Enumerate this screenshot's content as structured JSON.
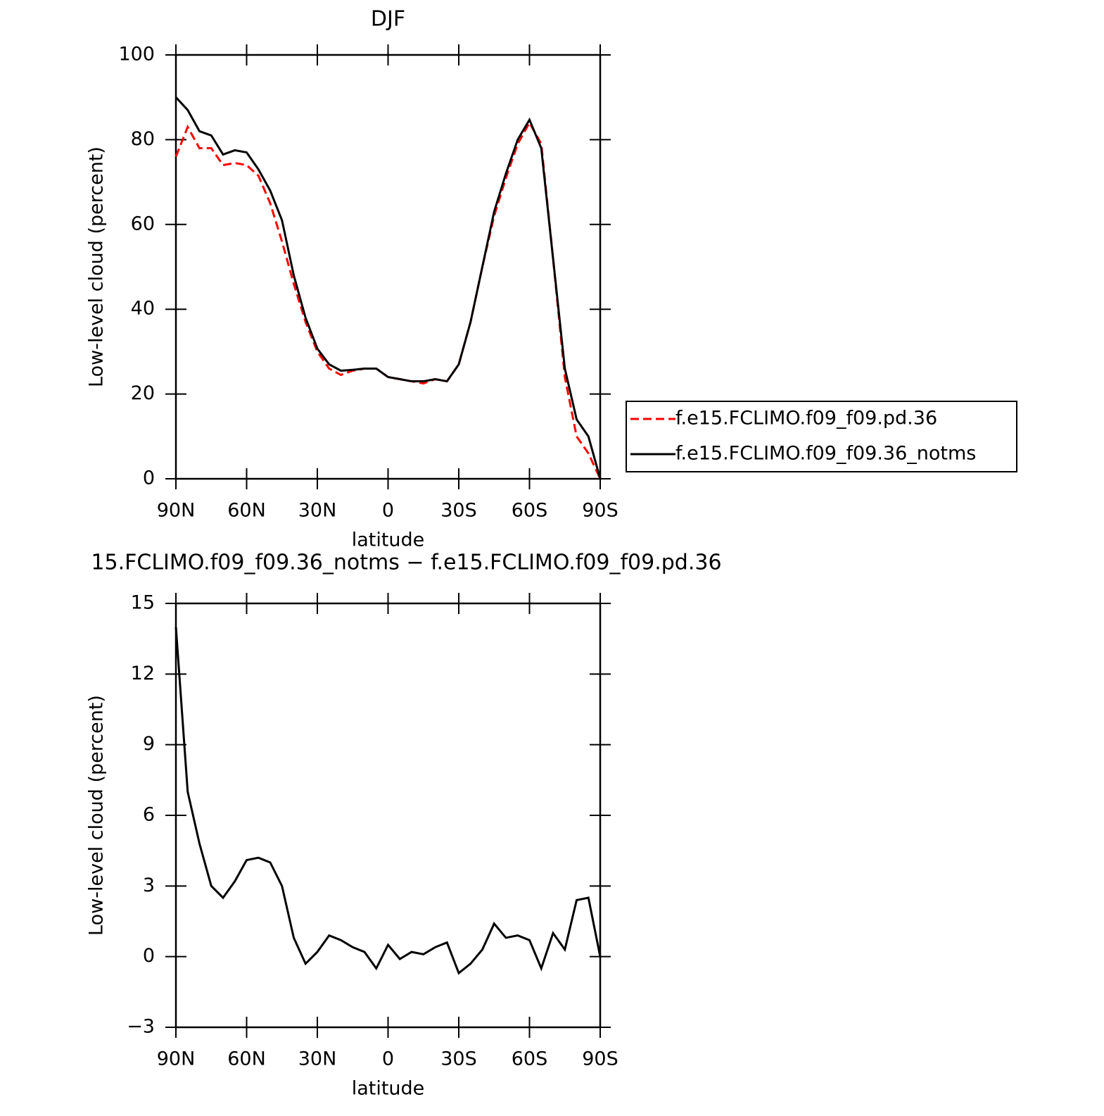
{
  "chart_data": [
    {
      "type": "line",
      "title": "DJF",
      "xlabel": "latitude",
      "ylabel": "Low-level cloud (percent)",
      "x": [
        90,
        85,
        80,
        75,
        70,
        65,
        60,
        55,
        50,
        45,
        40,
        35,
        30,
        25,
        20,
        15,
        10,
        5,
        0,
        -5,
        -10,
        -15,
        -20,
        -25,
        -30,
        -35,
        -40,
        -45,
        -50,
        -55,
        -60,
        -65,
        -70,
        -75,
        -80,
        -85,
        -90
      ],
      "xlim": [
        90,
        -90
      ],
      "xticks": [
        {
          "value": 90,
          "label": "90N"
        },
        {
          "value": 60,
          "label": "60N"
        },
        {
          "value": 30,
          "label": "30N"
        },
        0,
        {
          "value": -30,
          "label": "30S"
        },
        {
          "value": -60,
          "label": "60S"
        },
        {
          "value": -90,
          "label": "90S"
        }
      ],
      "ylim": [
        0,
        100
      ],
      "yticks": [
        0,
        20,
        40,
        60,
        80,
        100
      ],
      "legend": "right",
      "series": [
        {
          "name": "f.e15.FCLIMO.f09_f09.pd.36",
          "color": "#ff0000",
          "dash": true,
          "values": [
            76,
            83,
            78,
            78,
            74,
            74.5,
            74,
            71.5,
            65,
            56,
            46,
            37,
            30,
            26,
            24.5,
            25.5,
            26,
            26,
            24,
            23.5,
            23,
            22.5,
            23.5,
            23,
            27,
            37,
            50,
            62,
            71,
            79,
            84,
            79,
            52,
            24,
            10,
            6,
            0
          ]
        },
        {
          "name": "f.e15.FCLIMO.f09_f09.36_notms",
          "color": "#000000",
          "dash": false,
          "values": [
            90,
            87,
            82,
            81,
            76.5,
            77.5,
            77,
            73,
            68,
            61,
            48,
            38,
            30.7,
            27,
            25.5,
            25.7,
            26,
            26,
            24,
            23.5,
            23,
            23,
            23.5,
            23,
            27,
            37,
            50,
            63,
            72,
            80,
            84.7,
            78,
            52,
            26,
            14,
            10,
            0
          ]
        }
      ]
    },
    {
      "type": "line",
      "title": "15.FCLIMO.f09_f09.36_notms − f.e15.FCLIMO.f09_f09.pd.36",
      "xlabel": "latitude",
      "ylabel": "Low-level cloud (percent)",
      "x": [
        90,
        85,
        80,
        75,
        70,
        65,
        60,
        55,
        50,
        45,
        40,
        35,
        30,
        25,
        20,
        15,
        10,
        5,
        0,
        -5,
        -10,
        -15,
        -20,
        -25,
        -30,
        -35,
        -40,
        -45,
        -50,
        -55,
        -60,
        -65,
        -70,
        -75,
        -80,
        -85,
        -90
      ],
      "xlim": [
        90,
        -90
      ],
      "xticks": [
        {
          "value": 90,
          "label": "90N"
        },
        {
          "value": 60,
          "label": "60N"
        },
        {
          "value": 30,
          "label": "30N"
        },
        0,
        {
          "value": -30,
          "label": "30S"
        },
        {
          "value": -60,
          "label": "60S"
        },
        {
          "value": -90,
          "label": "90S"
        }
      ],
      "ylim": [
        -3,
        15
      ],
      "yticks": [
        {
          "value": -3,
          "label": "−3"
        },
        0,
        3,
        6,
        9,
        12,
        15
      ],
      "series": [
        {
          "color": "#000000",
          "dash": false,
          "values": [
            14,
            7,
            4.8,
            3,
            2.5,
            3.2,
            4.1,
            4.2,
            4.0,
            3.0,
            0.8,
            -0.3,
            0.2,
            0.9,
            0.7,
            0.4,
            0.2,
            -0.5,
            0.5,
            -0.1,
            0.2,
            0.1,
            0.4,
            0.6,
            -0.7,
            -0.3,
            0.3,
            1.4,
            0.8,
            0.9,
            0.7,
            -0.5,
            1.0,
            0.3,
            2.4,
            2.5,
            0
          ]
        }
      ]
    }
  ]
}
